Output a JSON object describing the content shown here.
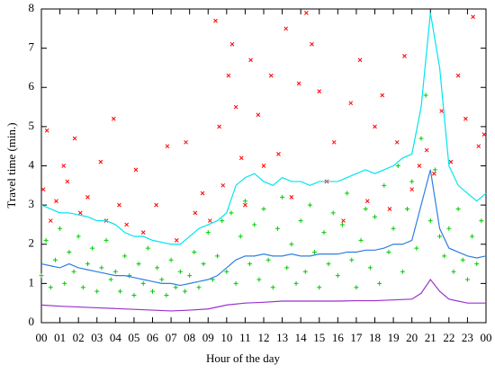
{
  "chart_data": {
    "type": "scatter",
    "xlabel": "Hour of the day",
    "ylabel": "Travel time (min.)",
    "xlim": [
      0,
      24
    ],
    "ylim": [
      0,
      8
    ],
    "xticks": [
      {
        "value": 0,
        "label": "00"
      },
      {
        "value": 1,
        "label": "01"
      },
      {
        "value": 2,
        "label": "02"
      },
      {
        "value": 3,
        "label": "03"
      },
      {
        "value": 4,
        "label": "04"
      },
      {
        "value": 5,
        "label": "05"
      },
      {
        "value": 6,
        "label": "06"
      },
      {
        "value": 7,
        "label": "07"
      },
      {
        "value": 8,
        "label": "08"
      },
      {
        "value": 9,
        "label": "09"
      },
      {
        "value": 10,
        "label": "10"
      },
      {
        "value": 11,
        "label": "11"
      },
      {
        "value": 12,
        "label": "12"
      },
      {
        "value": 13,
        "label": "13"
      },
      {
        "value": 14,
        "label": "14"
      },
      {
        "value": 15,
        "label": "15"
      },
      {
        "value": 16,
        "label": "16"
      },
      {
        "value": 17,
        "label": "17"
      },
      {
        "value": 18,
        "label": "18"
      },
      {
        "value": 19,
        "label": "19"
      },
      {
        "value": 20,
        "label": "20"
      },
      {
        "value": 21,
        "label": "21"
      },
      {
        "value": 22,
        "label": "22"
      },
      {
        "value": 23,
        "label": "23"
      },
      {
        "value": 24,
        "label": "00"
      }
    ],
    "yticks": [
      0,
      1,
      2,
      3,
      4,
      5,
      6,
      7,
      8
    ],
    "series": [
      {
        "style": "scatter",
        "marker": "x",
        "color": "#ff0000",
        "x": [
          0.1,
          0.3,
          0.5,
          0.8,
          1.2,
          1.4,
          1.8,
          2.1,
          2.5,
          3.2,
          3.5,
          3.9,
          4.2,
          4.6,
          5.1,
          5.5,
          6.2,
          6.8,
          7.3,
          7.8,
          8.3,
          8.7,
          9.1,
          9.4,
          9.6,
          9.8,
          10.1,
          10.3,
          10.5,
          10.8,
          11.0,
          11.3,
          11.7,
          12.0,
          12.4,
          12.8,
          13.2,
          13.5,
          13.9,
          14.3,
          14.6,
          15.0,
          15.4,
          15.8,
          16.3,
          16.7,
          17.2,
          17.6,
          18.0,
          18.4,
          18.8,
          19.2,
          19.6,
          20.0,
          20.4,
          20.8,
          21.2,
          21.6,
          22.1,
          22.5,
          22.9,
          23.3,
          23.6,
          23.9
        ],
        "values": [
          3.4,
          4.9,
          2.6,
          3.1,
          4.0,
          3.6,
          4.7,
          2.8,
          3.2,
          4.1,
          2.6,
          5.2,
          3.0,
          2.5,
          3.9,
          2.3,
          3.0,
          4.5,
          2.1,
          4.6,
          2.8,
          3.3,
          2.6,
          7.7,
          5.0,
          3.5,
          6.3,
          7.1,
          5.5,
          4.2,
          3.0,
          6.7,
          5.3,
          4.0,
          6.3,
          4.3,
          7.5,
          3.2,
          6.1,
          7.9,
          7.1,
          5.9,
          3.6,
          4.6,
          2.6,
          5.6,
          6.7,
          3.1,
          5.0,
          5.8,
          2.9,
          4.6,
          6.8,
          3.4,
          4.0,
          4.4,
          3.8,
          5.4,
          4.1,
          6.3,
          5.2,
          7.8,
          4.5,
          4.8
        ]
      },
      {
        "style": "scatter",
        "marker": "+",
        "color": "#00cc00",
        "x": [
          0,
          0.25,
          0.5,
          0.75,
          1,
          1.25,
          1.5,
          1.75,
          2,
          2.25,
          2.5,
          2.75,
          3,
          3.25,
          3.5,
          3.75,
          4,
          4.25,
          4.5,
          4.75,
          5,
          5.25,
          5.5,
          5.75,
          6,
          6.25,
          6.5,
          6.75,
          7,
          7.25,
          7.5,
          7.75,
          8,
          8.25,
          8.5,
          8.75,
          9,
          9.25,
          9.5,
          9.75,
          10,
          10.25,
          10.5,
          10.75,
          11,
          11.25,
          11.5,
          11.75,
          12,
          12.25,
          12.5,
          12.75,
          13,
          13.25,
          13.5,
          13.75,
          14,
          14.25,
          14.5,
          14.75,
          15,
          15.25,
          15.5,
          15.75,
          16,
          16.25,
          16.5,
          16.75,
          17,
          17.25,
          17.5,
          17.75,
          18,
          18.25,
          18.5,
          18.75,
          19,
          19.25,
          19.5,
          19.75,
          20,
          20.25,
          20.5,
          20.75,
          21,
          21.25,
          21.5,
          21.75,
          22,
          22.25,
          22.5,
          22.75,
          23,
          23.25,
          23.5,
          23.75
        ],
        "values": [
          1.2,
          2.1,
          0.9,
          1.6,
          2.4,
          1.0,
          1.8,
          1.3,
          2.2,
          0.9,
          1.5,
          1.9,
          0.8,
          1.4,
          2.1,
          1.1,
          1.3,
          0.8,
          1.7,
          1.2,
          0.7,
          1.5,
          1.0,
          1.9,
          0.8,
          1.4,
          1.1,
          0.7,
          1.6,
          0.9,
          1.3,
          0.8,
          1.2,
          1.8,
          0.9,
          1.5,
          2.3,
          1.1,
          1.7,
          2.6,
          1.3,
          2.8,
          1.0,
          2.2,
          3.1,
          1.5,
          2.5,
          1.1,
          2.9,
          1.6,
          0.9,
          2.4,
          3.2,
          1.4,
          2.0,
          1.0,
          2.6,
          1.3,
          3.0,
          1.8,
          0.9,
          2.3,
          1.5,
          2.8,
          1.2,
          2.5,
          3.3,
          1.6,
          0.9,
          2.1,
          2.9,
          1.4,
          2.7,
          1.0,
          3.5,
          1.8,
          2.4,
          4.0,
          1.3,
          2.9,
          3.6,
          1.9,
          4.7,
          5.8,
          2.6,
          3.9,
          2.2,
          1.7,
          2.4,
          1.3,
          2.9,
          1.6,
          1.1,
          2.2,
          1.5,
          2.6
        ]
      },
      {
        "style": "line",
        "color": "#00e5ee",
        "x": [
          0,
          0.5,
          1,
          1.5,
          2,
          2.5,
          3,
          3.5,
          4,
          4.5,
          5,
          5.5,
          6,
          6.5,
          7,
          7.5,
          8,
          8.5,
          9,
          9.5,
          10,
          10.5,
          11,
          11.5,
          12,
          12.5,
          13,
          13.5,
          14,
          14.5,
          15,
          15.5,
          16,
          16.5,
          17,
          17.5,
          18,
          18.5,
          19,
          19.5,
          20,
          20.5,
          21,
          21.5,
          22,
          22.5,
          23,
          23.5,
          24
        ],
        "values": [
          3.0,
          2.9,
          2.8,
          2.8,
          2.75,
          2.7,
          2.6,
          2.6,
          2.5,
          2.3,
          2.2,
          2.2,
          2.1,
          2.05,
          2.0,
          2.0,
          2.2,
          2.4,
          2.5,
          2.6,
          2.8,
          3.5,
          3.7,
          3.8,
          3.6,
          3.5,
          3.7,
          3.6,
          3.6,
          3.5,
          3.6,
          3.6,
          3.6,
          3.7,
          3.8,
          3.9,
          3.8,
          3.9,
          4.0,
          4.2,
          4.3,
          5.5,
          7.9,
          6.5,
          4.0,
          3.5,
          3.3,
          3.1,
          3.3
        ]
      },
      {
        "style": "line",
        "color": "#2f7fe0",
        "x": [
          0,
          0.5,
          1,
          1.5,
          2,
          2.5,
          3,
          3.5,
          4,
          4.5,
          5,
          5.5,
          6,
          6.5,
          7,
          7.5,
          8,
          8.5,
          9,
          9.5,
          10,
          10.5,
          11,
          11.5,
          12,
          12.5,
          13,
          13.5,
          14,
          14.5,
          15,
          15.5,
          16,
          16.5,
          17,
          17.5,
          18,
          18.5,
          19,
          19.5,
          20,
          20.5,
          21,
          21.5,
          22,
          22.5,
          23,
          23.5,
          24
        ],
        "values": [
          1.5,
          1.45,
          1.4,
          1.5,
          1.4,
          1.35,
          1.3,
          1.25,
          1.2,
          1.2,
          1.15,
          1.1,
          1.05,
          1.0,
          1.0,
          0.95,
          1.0,
          1.05,
          1.1,
          1.2,
          1.4,
          1.6,
          1.7,
          1.7,
          1.75,
          1.7,
          1.7,
          1.75,
          1.7,
          1.7,
          1.75,
          1.75,
          1.75,
          1.8,
          1.8,
          1.85,
          1.85,
          1.9,
          2.0,
          2.0,
          2.1,
          3.0,
          3.9,
          2.4,
          1.9,
          1.8,
          1.7,
          1.65,
          1.7
        ]
      },
      {
        "style": "line",
        "color": "#9932cc",
        "x": [
          0,
          1,
          2,
          3,
          4,
          5,
          6,
          7,
          8,
          9,
          10,
          11,
          12,
          13,
          14,
          15,
          16,
          17,
          18,
          19,
          20,
          20.5,
          21,
          21.5,
          22,
          23,
          24
        ],
        "values": [
          0.45,
          0.42,
          0.4,
          0.38,
          0.36,
          0.34,
          0.32,
          0.3,
          0.32,
          0.35,
          0.45,
          0.5,
          0.52,
          0.55,
          0.55,
          0.55,
          0.55,
          0.56,
          0.56,
          0.58,
          0.6,
          0.75,
          1.1,
          0.8,
          0.6,
          0.5,
          0.5
        ]
      }
    ]
  }
}
